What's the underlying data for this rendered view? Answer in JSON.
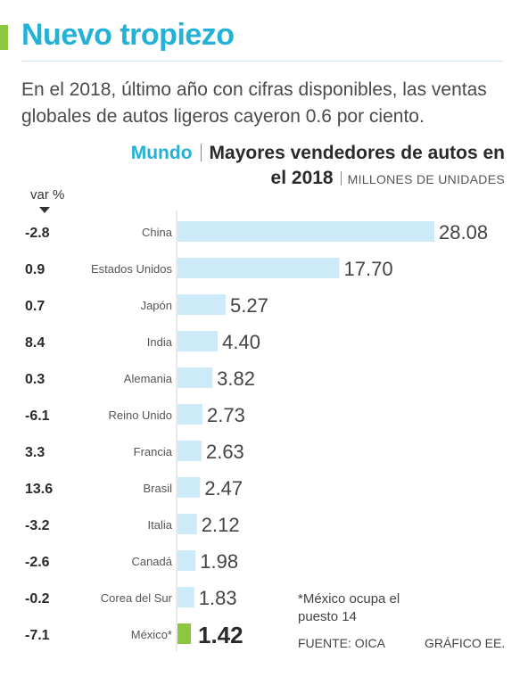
{
  "header": {
    "title": "Nuevo tropiezo",
    "intro": "En el 2018, último año con cifras disponibles, las ventas globales de autos ligeros cayeron 0.6 por ciento.",
    "region": "Mundo",
    "subtitle_line1": "Mayores vendedores de autos en",
    "subtitle_line2": "el 2018",
    "units": "MILLONES DE UNIDADES",
    "var_label": "var %"
  },
  "colors": {
    "accent": "#8dc63f",
    "title": "#23b1d6",
    "bar": "#cdeaf8",
    "highlight_bar": "#8dc63f"
  },
  "chart_data": {
    "type": "bar",
    "orientation": "horizontal",
    "title": "Mayores vendedores de autos en el 2018",
    "units": "MILLONES DE UNIDADES",
    "categories": [
      "China",
      "Estados Unidos",
      "Japón",
      "India",
      "Alemania",
      "Reino Unido",
      "Francia",
      "Brasil",
      "Italia",
      "Canadá",
      "Corea del Sur",
      "México*"
    ],
    "values": [
      28.08,
      17.7,
      5.27,
      4.4,
      3.82,
      2.73,
      2.63,
      2.47,
      2.12,
      1.98,
      1.83,
      1.42
    ],
    "value_labels": [
      "28.08",
      "17.70",
      "5.27",
      "4.40",
      "3.82",
      "2.73",
      "2.63",
      "2.47",
      "2.12",
      "1.98",
      "1.83",
      "1.42"
    ],
    "var_pct": [
      "-2.8",
      "0.9",
      "0.7",
      "8.4",
      "0.3",
      "-6.1",
      "3.3",
      "13.6",
      "-3.2",
      "-2.6",
      "-0.2",
      "-7.1"
    ],
    "highlight": "México*",
    "xlim": [
      0,
      28.08
    ],
    "grid": false
  },
  "footer": {
    "note": "*México ocupa el puesto 14",
    "source": "FUENTE: OICA",
    "credit": "GRÁFICO EE."
  }
}
